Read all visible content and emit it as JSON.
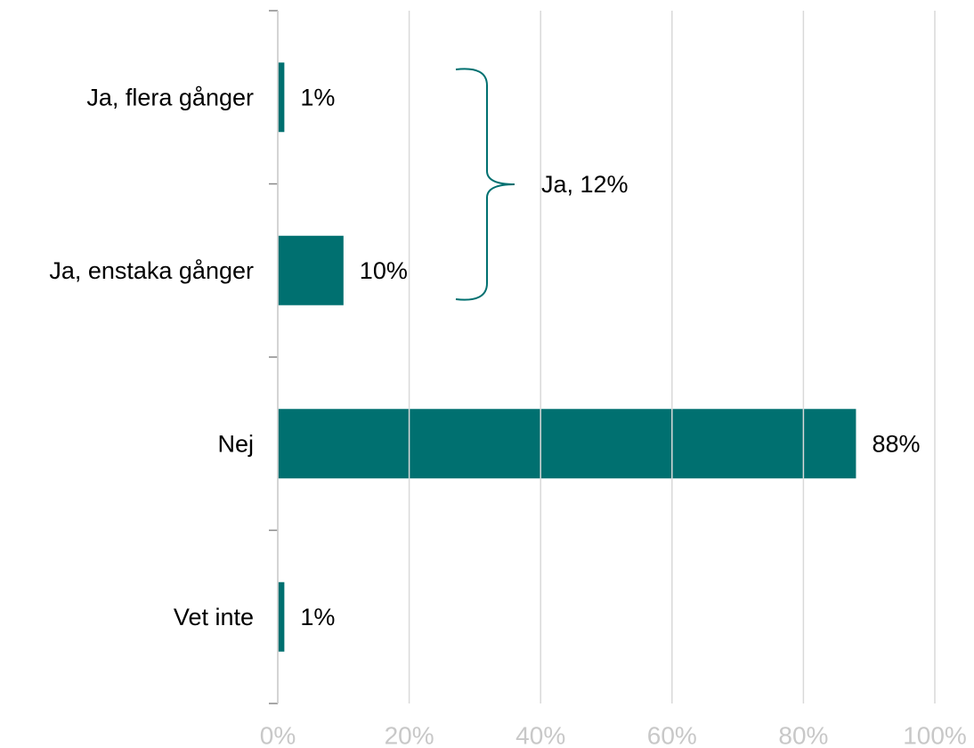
{
  "chart_data": {
    "type": "bar",
    "orientation": "horizontal",
    "categories": [
      "Ja, flera gånger",
      "Ja, enstaka gånger",
      "Nej",
      "Vet inte"
    ],
    "values": [
      1,
      10,
      88,
      1
    ],
    "value_labels": [
      "1%",
      "10%",
      "88%",
      "1%"
    ],
    "color": "#007070",
    "xlim": [
      0,
      100
    ],
    "xticks": [
      {
        "value": 0,
        "label": "0%"
      },
      {
        "value": 20,
        "label": "20%"
      },
      {
        "value": 40,
        "label": "40%"
      },
      {
        "value": 60,
        "label": "60%"
      },
      {
        "value": 80,
        "label": "80%"
      },
      {
        "value": 100,
        "label": "100%"
      }
    ],
    "grid": true,
    "annotation": "Ja, 12%"
  }
}
